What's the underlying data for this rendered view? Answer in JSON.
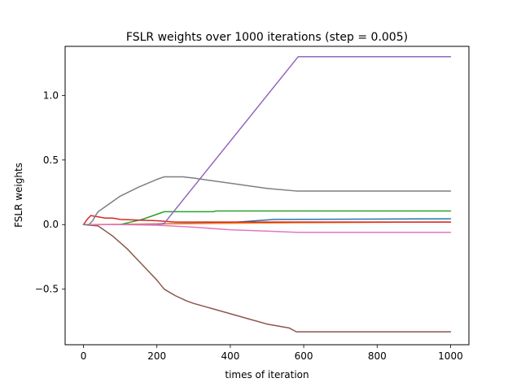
{
  "chart_data": {
    "type": "line",
    "title": "FSLR weights over 1000 iterations (step = 0.005)",
    "xlabel": "times of iteration",
    "ylabel": "FSLR weights",
    "xlim": [
      -50,
      1050
    ],
    "ylim": [
      -0.93,
      1.38
    ],
    "xticks": [
      0,
      200,
      400,
      600,
      800,
      1000
    ],
    "xtick_labels": [
      "0",
      "200",
      "400",
      "600",
      "800",
      "1000"
    ],
    "yticks": [
      -0.5,
      0.0,
      0.5,
      1.0
    ],
    "ytick_labels": [
      "−0.5",
      "0.0",
      "0.5",
      "1.0"
    ],
    "grid": false,
    "series": [
      {
        "color": "#1f77b4",
        "x": [
          0,
          100,
          300,
          420,
          520,
          1000
        ],
        "y": [
          0,
          0,
          0.01,
          0.02,
          0.04,
          0.045
        ]
      },
      {
        "color": "#ff7f0e",
        "x": [
          0,
          200,
          400,
          600,
          1000
        ],
        "y": [
          0,
          0.005,
          0.01,
          0.015,
          0.02
        ]
      },
      {
        "color": "#2ca02c",
        "x": [
          0,
          100,
          130,
          160,
          190,
          220,
          300,
          355,
          360,
          1000
        ],
        "y": [
          0,
          0,
          0.02,
          0.04,
          0.07,
          0.1,
          0.1,
          0.1,
          0.105,
          0.105
        ]
      },
      {
        "color": "#d62728",
        "x": [
          0,
          10,
          20,
          40,
          60,
          80,
          100,
          150,
          200,
          250,
          400,
          500,
          1000
        ],
        "y": [
          0,
          0.04,
          0.07,
          0.06,
          0.05,
          0.05,
          0.04,
          0.035,
          0.03,
          0.02,
          0.02,
          0.02,
          0.02
        ]
      },
      {
        "color": "#9467bd",
        "x": [
          0,
          200,
          220,
          585,
          1000
        ],
        "y": [
          0,
          0,
          0.01,
          1.3,
          1.3
        ]
      },
      {
        "color": "#8c564b",
        "x": [
          0,
          40,
          60,
          80,
          100,
          120,
          140,
          160,
          180,
          200,
          220,
          250,
          280,
          300,
          350,
          400,
          450,
          500,
          560,
          580,
          1000
        ],
        "y": [
          0,
          -0.01,
          -0.05,
          -0.09,
          -0.14,
          -0.19,
          -0.25,
          -0.31,
          -0.37,
          -0.43,
          -0.5,
          -0.55,
          -0.59,
          -0.61,
          -0.65,
          -0.69,
          -0.73,
          -0.77,
          -0.8,
          -0.83,
          -0.83
        ]
      },
      {
        "color": "#e377c2",
        "x": [
          0,
          100,
          200,
          300,
          400,
          500,
          580,
          1000
        ],
        "y": [
          0,
          0,
          -0.005,
          -0.02,
          -0.04,
          -0.05,
          -0.06,
          -0.06
        ]
      },
      {
        "color": "#7f7f7f",
        "x": [
          0,
          15,
          25,
          35,
          40,
          60,
          80,
          100,
          150,
          200,
          220,
          270,
          300,
          400,
          500,
          580,
          1000
        ],
        "y": [
          0,
          0,
          0.03,
          0.08,
          0.1,
          0.14,
          0.18,
          0.22,
          0.29,
          0.35,
          0.37,
          0.37,
          0.36,
          0.32,
          0.28,
          0.26,
          0.26
        ]
      }
    ]
  }
}
